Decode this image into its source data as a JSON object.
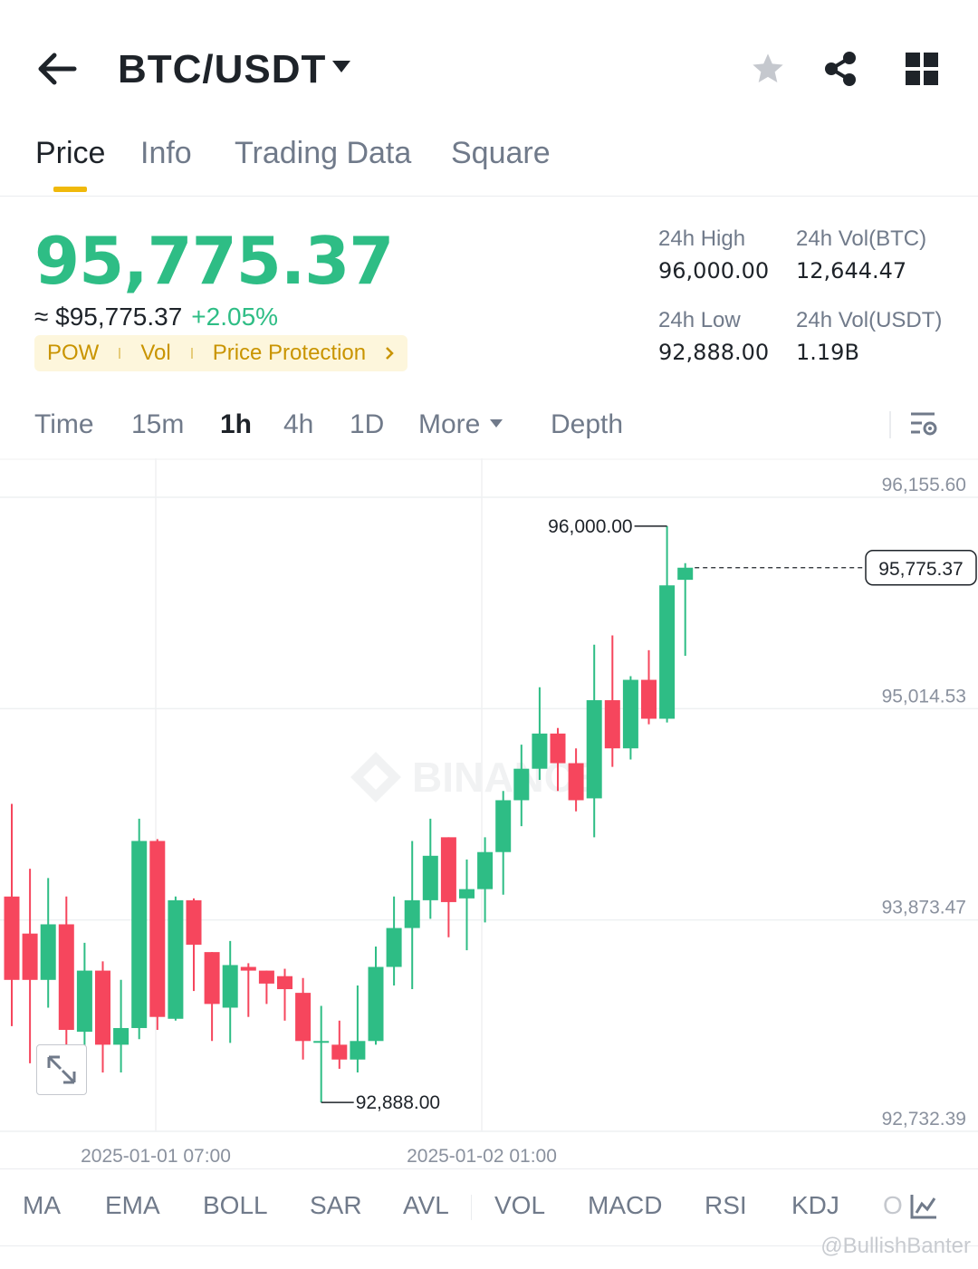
{
  "header": {
    "title": "BTC/USDT",
    "icons": [
      "back-arrow-icon",
      "caret-down-icon",
      "star-icon",
      "share-icon",
      "grid-icon"
    ]
  },
  "tabs": [
    {
      "label": "Price",
      "active": true
    },
    {
      "label": "Info",
      "active": false
    },
    {
      "label": "Trading Data",
      "active": false
    },
    {
      "label": "Square",
      "active": false
    }
  ],
  "ticker": {
    "last_price": "95,775.37",
    "fiat_price": "≈ $95,775.37",
    "change_pct": "+2.05%",
    "tags": [
      "POW",
      "Vol",
      "Price Protection"
    ],
    "high_label": "24h High",
    "high_value": "96,000.00",
    "low_label": "24h Low",
    "low_value": "92,888.00",
    "vol_btc_label": "24h Vol(BTC)",
    "vol_btc_value": "12,644.47",
    "vol_usdt_label": "24h Vol(USDT)",
    "vol_usdt_value": "1.19B"
  },
  "timeframes": [
    {
      "label": "Time",
      "active": false
    },
    {
      "label": "15m",
      "active": false
    },
    {
      "label": "1h",
      "active": true
    },
    {
      "label": "4h",
      "active": false
    },
    {
      "label": "1D",
      "active": false
    },
    {
      "label": "More",
      "active": false
    },
    {
      "label": "Depth",
      "active": false
    }
  ],
  "colors": {
    "up": "#2ebd85",
    "down": "#f6465d",
    "accent": "#f0b90b"
  },
  "chart_data": {
    "type": "candlestick",
    "interval": "1h",
    "y_ticks": [
      "96,155.60",
      "95,014.53",
      "93,873.47",
      "92,732.39"
    ],
    "y_tick_values": [
      96155.6,
      95014.53,
      93873.47,
      92732.39
    ],
    "x_ticks": [
      "2025-01-01 07:00",
      "2025-01-02 01:00"
    ],
    "current_price_label": "95,775.37",
    "current_price": 95775.37,
    "high_annotation": "96,000.00",
    "low_annotation": "92,888.00",
    "watermark": "BINANCE",
    "candles": [
      {
        "o": 94000,
        "h": 94500,
        "l": 93300,
        "c": 93550
      },
      {
        "o": 93800,
        "h": 94150,
        "l": 93100,
        "c": 93550
      },
      {
        "o": 93550,
        "h": 94100,
        "l": 93400,
        "c": 93850
      },
      {
        "o": 93850,
        "h": 94000,
        "l": 93150,
        "c": 93280
      },
      {
        "o": 93270,
        "h": 93750,
        "l": 93100,
        "c": 93600
      },
      {
        "o": 93600,
        "h": 93650,
        "l": 93050,
        "c": 93200
      },
      {
        "o": 93200,
        "h": 93550,
        "l": 93050,
        "c": 93290
      },
      {
        "o": 93290,
        "h": 94420,
        "l": 93230,
        "c": 94300
      },
      {
        "o": 94300,
        "h": 94310,
        "l": 93280,
        "c": 93350
      },
      {
        "o": 93340,
        "h": 94000,
        "l": 93330,
        "c": 93980
      },
      {
        "o": 93980,
        "h": 93990,
        "l": 93490,
        "c": 93740
      },
      {
        "o": 93700,
        "h": 93700,
        "l": 93220,
        "c": 93420
      },
      {
        "o": 93400,
        "h": 93760,
        "l": 93210,
        "c": 93630
      },
      {
        "o": 93620,
        "h": 93640,
        "l": 93350,
        "c": 93600
      },
      {
        "o": 93600,
        "h": 93600,
        "l": 93420,
        "c": 93530
      },
      {
        "o": 93570,
        "h": 93610,
        "l": 93330,
        "c": 93500
      },
      {
        "o": 93480,
        "h": 93560,
        "l": 93120,
        "c": 93220
      },
      {
        "o": 93220,
        "h": 93410,
        "l": 92888,
        "c": 93220
      },
      {
        "o": 93200,
        "h": 93330,
        "l": 93070,
        "c": 93120
      },
      {
        "o": 93120,
        "h": 93520,
        "l": 93050,
        "c": 93220
      },
      {
        "o": 93220,
        "h": 93730,
        "l": 93200,
        "c": 93620
      },
      {
        "o": 93620,
        "h": 94000,
        "l": 93520,
        "c": 93830
      },
      {
        "o": 93830,
        "h": 94300,
        "l": 93500,
        "c": 93980
      },
      {
        "o": 93980,
        "h": 94420,
        "l": 93880,
        "c": 94220
      },
      {
        "o": 94320,
        "h": 94320,
        "l": 93780,
        "c": 93970
      },
      {
        "o": 93990,
        "h": 94200,
        "l": 93710,
        "c": 94040
      },
      {
        "o": 94040,
        "h": 94320,
        "l": 93860,
        "c": 94240
      },
      {
        "o": 94240,
        "h": 94570,
        "l": 94010,
        "c": 94520
      },
      {
        "o": 94520,
        "h": 94820,
        "l": 94380,
        "c": 94690
      },
      {
        "o": 94690,
        "h": 95130,
        "l": 94630,
        "c": 94880
      },
      {
        "o": 94880,
        "h": 94910,
        "l": 94570,
        "c": 94720
      },
      {
        "o": 94720,
        "h": 94800,
        "l": 94460,
        "c": 94520
      },
      {
        "o": 94530,
        "h": 95360,
        "l": 94320,
        "c": 95060
      },
      {
        "o": 95060,
        "h": 95410,
        "l": 94700,
        "c": 94800
      },
      {
        "o": 94800,
        "h": 95190,
        "l": 94740,
        "c": 95170
      },
      {
        "o": 95170,
        "h": 95330,
        "l": 94930,
        "c": 94960
      },
      {
        "o": 94960,
        "h": 96000,
        "l": 94940,
        "c": 95680
      },
      {
        "o": 95710,
        "h": 95800,
        "l": 95300,
        "c": 95775.37
      }
    ]
  },
  "indicators": [
    "MA",
    "EMA",
    "BOLL",
    "SAR",
    "AVL",
    "VOL",
    "MACD",
    "RSI",
    "KDJ",
    "O"
  ],
  "watermark_text": "@BullishBanter"
}
